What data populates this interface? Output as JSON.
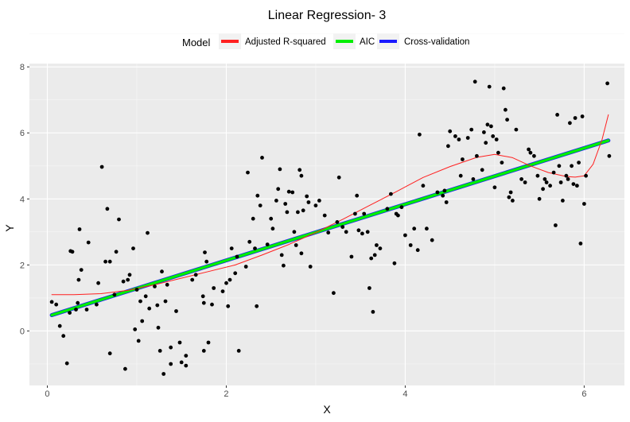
{
  "chart_data": {
    "type": "scatter",
    "title": "Linear Regression-  3",
    "xlabel": "X",
    "ylabel": "Y",
    "xlim": [
      -0.2,
      6.45
    ],
    "ylim": [
      -1.65,
      8.1
    ],
    "x_ticks": [
      0,
      2,
      4,
      6
    ],
    "y_ticks": [
      0,
      2,
      4,
      6,
      8
    ],
    "grid": true,
    "legend": {
      "title": "Model",
      "position": "top",
      "entries": [
        {
          "label": "Adjusted R-squared",
          "color": "#ff2020"
        },
        {
          "label": "AIC",
          "color": "#00ee00"
        },
        {
          "label": "Cross-validation",
          "color": "#1a1aff"
        }
      ]
    },
    "points": [
      [
        0.05,
        0.88
      ],
      [
        0.1,
        0.8
      ],
      [
        0.14,
        0.15
      ],
      [
        0.18,
        -0.15
      ],
      [
        0.22,
        -0.98
      ],
      [
        0.25,
        0.55
      ],
      [
        0.26,
        2.42
      ],
      [
        0.28,
        2.4
      ],
      [
        0.32,
        0.65
      ],
      [
        0.34,
        0.85
      ],
      [
        0.35,
        1.55
      ],
      [
        0.36,
        3.08
      ],
      [
        0.38,
        1.85
      ],
      [
        0.44,
        0.65
      ],
      [
        0.46,
        2.68
      ],
      [
        0.55,
        0.8
      ],
      [
        0.57,
        1.45
      ],
      [
        0.61,
        4.97
      ],
      [
        0.65,
        2.1
      ],
      [
        0.67,
        3.7
      ],
      [
        0.7,
        2.1
      ],
      [
        0.7,
        -0.68
      ],
      [
        0.75,
        1.1
      ],
      [
        0.77,
        2.4
      ],
      [
        0.8,
        3.38
      ],
      [
        0.85,
        1.5
      ],
      [
        0.87,
        -1.15
      ],
      [
        0.9,
        1.55
      ],
      [
        0.92,
        1.7
      ],
      [
        0.96,
        2.5
      ],
      [
        0.98,
        0.05
      ],
      [
        1.0,
        1.25
      ],
      [
        1.02,
        -0.3
      ],
      [
        1.04,
        0.9
      ],
      [
        1.06,
        0.3
      ],
      [
        1.1,
        1.05
      ],
      [
        1.12,
        2.97
      ],
      [
        1.14,
        0.68
      ],
      [
        1.2,
        1.35
      ],
      [
        1.23,
        0.78
      ],
      [
        1.24,
        0.1
      ],
      [
        1.26,
        -0.6
      ],
      [
        1.28,
        1.8
      ],
      [
        1.3,
        -1.3
      ],
      [
        1.32,
        0.9
      ],
      [
        1.34,
        1.4
      ],
      [
        1.38,
        -0.5
      ],
      [
        1.38,
        -1.0
      ],
      [
        1.44,
        0.6
      ],
      [
        1.48,
        -0.35
      ],
      [
        1.5,
        -0.95
      ],
      [
        1.55,
        -1.05
      ],
      [
        1.55,
        -0.75
      ],
      [
        1.62,
        1.55
      ],
      [
        1.66,
        1.7
      ],
      [
        1.74,
        1.05
      ],
      [
        1.75,
        0.85
      ],
      [
        1.75,
        -0.6
      ],
      [
        1.76,
        2.38
      ],
      [
        1.78,
        2.1
      ],
      [
        1.8,
        -0.35
      ],
      [
        1.84,
        0.8
      ],
      [
        1.86,
        1.3
      ],
      [
        1.96,
        1.2
      ],
      [
        2.0,
        1.45
      ],
      [
        2.02,
        0.75
      ],
      [
        2.04,
        1.55
      ],
      [
        2.06,
        2.5
      ],
      [
        2.1,
        1.75
      ],
      [
        2.12,
        2.25
      ],
      [
        2.14,
        -0.6
      ],
      [
        2.22,
        1.95
      ],
      [
        2.24,
        4.8
      ],
      [
        2.26,
        2.7
      ],
      [
        2.3,
        3.4
      ],
      [
        2.32,
        2.5
      ],
      [
        2.34,
        0.75
      ],
      [
        2.35,
        4.1
      ],
      [
        2.38,
        3.8
      ],
      [
        2.4,
        5.25
      ],
      [
        2.46,
        2.62
      ],
      [
        2.5,
        3.4
      ],
      [
        2.52,
        3.1
      ],
      [
        2.56,
        3.95
      ],
      [
        2.58,
        4.3
      ],
      [
        2.6,
        4.9
      ],
      [
        2.62,
        2.3
      ],
      [
        2.64,
        1.98
      ],
      [
        2.66,
        3.85
      ],
      [
        2.68,
        3.6
      ],
      [
        2.7,
        4.22
      ],
      [
        2.74,
        4.2
      ],
      [
        2.76,
        3.0
      ],
      [
        2.78,
        2.6
      ],
      [
        2.8,
        3.6
      ],
      [
        2.82,
        4.88
      ],
      [
        2.84,
        4.7
      ],
      [
        2.84,
        2.35
      ],
      [
        2.86,
        3.65
      ],
      [
        2.9,
        4.08
      ],
      [
        2.92,
        3.9
      ],
      [
        2.94,
        1.95
      ],
      [
        3.0,
        3.8
      ],
      [
        3.04,
        3.95
      ],
      [
        3.1,
        3.5
      ],
      [
        3.14,
        2.98
      ],
      [
        3.2,
        1.15
      ],
      [
        3.24,
        3.3
      ],
      [
        3.26,
        4.65
      ],
      [
        3.3,
        3.15
      ],
      [
        3.34,
        3.0
      ],
      [
        3.4,
        2.25
      ],
      [
        3.44,
        3.55
      ],
      [
        3.46,
        4.1
      ],
      [
        3.48,
        3.05
      ],
      [
        3.52,
        2.95
      ],
      [
        3.54,
        3.55
      ],
      [
        3.58,
        3.0
      ],
      [
        3.6,
        1.3
      ],
      [
        3.62,
        2.2
      ],
      [
        3.64,
        0.58
      ],
      [
        3.66,
        2.3
      ],
      [
        3.68,
        2.6
      ],
      [
        3.72,
        2.5
      ],
      [
        3.8,
        3.7
      ],
      [
        3.84,
        4.15
      ],
      [
        3.88,
        2.05
      ],
      [
        3.9,
        3.55
      ],
      [
        3.92,
        3.5
      ],
      [
        3.96,
        3.75
      ],
      [
        4.0,
        2.9
      ],
      [
        4.06,
        2.6
      ],
      [
        4.1,
        3.1
      ],
      [
        4.14,
        2.45
      ],
      [
        4.16,
        5.95
      ],
      [
        4.2,
        4.4
      ],
      [
        4.24,
        3.1
      ],
      [
        4.3,
        2.75
      ],
      [
        4.36,
        4.2
      ],
      [
        4.42,
        4.1
      ],
      [
        4.44,
        4.25
      ],
      [
        4.46,
        3.9
      ],
      [
        4.48,
        5.6
      ],
      [
        4.5,
        6.05
      ],
      [
        4.56,
        5.9
      ],
      [
        4.6,
        5.8
      ],
      [
        4.62,
        4.7
      ],
      [
        4.64,
        5.2
      ],
      [
        4.7,
        5.85
      ],
      [
        4.74,
        6.1
      ],
      [
        4.76,
        4.6
      ],
      [
        4.78,
        7.55
      ],
      [
        4.8,
        5.3
      ],
      [
        4.86,
        4.88
      ],
      [
        4.88,
        6.02
      ],
      [
        4.9,
        5.7
      ],
      [
        4.92,
        6.25
      ],
      [
        4.94,
        7.4
      ],
      [
        4.96,
        6.2
      ],
      [
        4.98,
        5.9
      ],
      [
        5.0,
        4.35
      ],
      [
        5.02,
        5.8
      ],
      [
        5.04,
        5.4
      ],
      [
        5.08,
        5.1
      ],
      [
        5.1,
        7.35
      ],
      [
        5.12,
        6.7
      ],
      [
        5.14,
        6.4
      ],
      [
        5.16,
        4.05
      ],
      [
        5.18,
        4.2
      ],
      [
        5.2,
        3.95
      ],
      [
        5.24,
        6.1
      ],
      [
        5.3,
        4.6
      ],
      [
        5.34,
        4.5
      ],
      [
        5.38,
        5.5
      ],
      [
        5.4,
        5.4
      ],
      [
        5.44,
        5.3
      ],
      [
        5.48,
        4.7
      ],
      [
        5.5,
        4.0
      ],
      [
        5.54,
        4.3
      ],
      [
        5.56,
        4.6
      ],
      [
        5.58,
        4.5
      ],
      [
        5.62,
        4.4
      ],
      [
        5.66,
        4.8
      ],
      [
        5.68,
        3.2
      ],
      [
        5.7,
        6.55
      ],
      [
        5.72,
        5.0
      ],
      [
        5.74,
        4.5
      ],
      [
        5.76,
        3.95
      ],
      [
        5.8,
        4.7
      ],
      [
        5.82,
        4.6
      ],
      [
        5.84,
        6.3
      ],
      [
        5.86,
        5.0
      ],
      [
        5.88,
        4.45
      ],
      [
        5.9,
        6.45
      ],
      [
        5.92,
        4.4
      ],
      [
        5.94,
        5.1
      ],
      [
        5.96,
        2.65
      ],
      [
        5.98,
        6.5
      ],
      [
        6.0,
        3.85
      ],
      [
        6.02,
        4.7
      ],
      [
        6.26,
        7.5
      ],
      [
        6.28,
        5.3
      ]
    ],
    "series": [
      {
        "name": "Cross-validation",
        "color": "#1a1aff",
        "width": 5,
        "x": [
          0.05,
          6.27
        ],
        "y": [
          0.48,
          5.77
        ]
      },
      {
        "name": "AIC",
        "color": "#00ee00",
        "width": 3.5,
        "x": [
          0.05,
          6.27
        ],
        "y": [
          0.48,
          5.77
        ]
      },
      {
        "name": "Adjusted R-squared",
        "color": "#ff2020",
        "width": 1,
        "x": [
          0.05,
          0.3,
          0.6,
          0.9,
          1.2,
          1.5,
          1.8,
          2.1,
          2.4,
          2.7,
          3.0,
          3.3,
          3.6,
          3.9,
          4.2,
          4.5,
          4.8,
          5.0,
          5.2,
          5.4,
          5.6,
          5.8,
          5.9,
          6.0,
          6.1,
          6.2,
          6.27
        ],
        "y": [
          1.1,
          1.1,
          1.13,
          1.23,
          1.4,
          1.6,
          1.8,
          2.0,
          2.3,
          2.62,
          2.98,
          3.38,
          3.8,
          4.22,
          4.65,
          4.98,
          5.26,
          5.35,
          5.25,
          5.0,
          4.8,
          4.68,
          4.66,
          4.7,
          5.05,
          5.8,
          6.55
        ]
      }
    ]
  }
}
